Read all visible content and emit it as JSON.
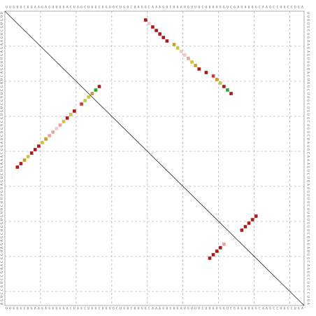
{
  "sequence": "UUGUGCUGAAGAGUUGGACUAGCUUGCUGUGCUGUCUAGGCAAAGUCUGAUGUUUCUUGUGGUCGAGAUGGCAAGCCUGCCUGA",
  "length": 84,
  "colors": {
    "grid": "#9a9a9a",
    "diagonal": "#222222",
    "sequence_text": "#555555",
    "prob_very_high": "#b01818",
    "prob_high": "#cc3a3a",
    "prob_medium_high": "#c9a020",
    "prob_medium": "#c8c640",
    "prob_green": "#2aa52a",
    "prob_low": "#e9a3a3",
    "prob_very_low": "#f2c8c8"
  },
  "upper_stem_1": [
    {
      "i": 3,
      "j": 44,
      "level": "prob_very_high"
    },
    {
      "i": 4,
      "j": 43,
      "level": "prob_very_high"
    },
    {
      "i": 5,
      "j": 42,
      "level": "prob_medium_high"
    },
    {
      "i": 6,
      "j": 41,
      "level": "prob_medium"
    },
    {
      "i": 7,
      "j": 40,
      "level": "prob_very_high"
    },
    {
      "i": 8,
      "j": 39,
      "level": "prob_very_high"
    },
    {
      "i": 9,
      "j": 38,
      "level": "prob_very_high"
    },
    {
      "i": 10,
      "j": 37,
      "level": "prob_medium"
    },
    {
      "i": 11,
      "j": 36,
      "level": "prob_medium_high"
    },
    {
      "i": 12,
      "j": 35,
      "level": "prob_low"
    },
    {
      "i": 13,
      "j": 34,
      "level": "prob_low"
    },
    {
      "i": 14,
      "j": 33,
      "level": "prob_very_low"
    },
    {
      "i": 15,
      "j": 32,
      "level": "prob_low"
    },
    {
      "i": 16,
      "j": 31,
      "level": "prob_medium"
    },
    {
      "i": 17,
      "j": 30,
      "level": "prob_very_high"
    },
    {
      "i": 18,
      "j": 29,
      "level": "prob_medium"
    },
    {
      "i": 19,
      "j": 28,
      "level": "prob_very_high"
    },
    {
      "i": 21,
      "j": 26,
      "level": "prob_high"
    },
    {
      "i": 22,
      "j": 25,
      "level": "prob_medium"
    },
    {
      "i": 23,
      "j": 24,
      "level": "prob_medium"
    },
    {
      "i": 24,
      "j": 23,
      "level": "prob_medium_high"
    },
    {
      "i": 25,
      "j": 22,
      "level": "prob_green"
    },
    {
      "i": 26,
      "j": 21,
      "level": "prob_very_high"
    }
  ],
  "upper_stem_2": [
    {
      "i": 39,
      "j": 2,
      "level": "prob_very_high"
    },
    {
      "i": 40,
      "j": 3,
      "level": "prob_very_low"
    },
    {
      "i": 41,
      "j": 4,
      "level": "prob_very_high"
    },
    {
      "i": 42,
      "j": 5,
      "level": "prob_very_high"
    },
    {
      "i": 43,
      "j": 6,
      "level": "prob_very_high"
    },
    {
      "i": 44,
      "j": 7,
      "level": "prob_very_high"
    },
    {
      "i": 45,
      "j": 8,
      "level": "prob_very_high"
    },
    {
      "i": 47,
      "j": 9,
      "level": "prob_medium_high"
    },
    {
      "i": 48,
      "j": 10,
      "level": "prob_medium"
    },
    {
      "i": 49,
      "j": 11,
      "level": "prob_very_low"
    },
    {
      "i": 50,
      "j": 12,
      "level": "prob_very_low"
    },
    {
      "i": 51,
      "j": 13,
      "level": "prob_low"
    },
    {
      "i": 52,
      "j": 14,
      "level": "prob_medium"
    },
    {
      "i": 53,
      "j": 15,
      "level": "prob_medium_high"
    },
    {
      "i": 54,
      "j": 16,
      "level": "prob_very_high"
    },
    {
      "i": 56,
      "j": 17,
      "level": "prob_very_high"
    },
    {
      "i": 58,
      "j": 18,
      "level": "prob_high"
    },
    {
      "i": 59,
      "j": 19,
      "level": "prob_medium_high"
    },
    {
      "i": 60,
      "j": 20,
      "level": "prob_medium"
    },
    {
      "i": 61,
      "j": 21,
      "level": "prob_very_high"
    },
    {
      "i": 62,
      "j": 22,
      "level": "prob_green"
    },
    {
      "i": 63,
      "j": 23,
      "level": "prob_very_high"
    }
  ],
  "lower_stem_1": [
    {
      "i": 57,
      "j": 70,
      "level": "prob_very_high"
    },
    {
      "i": 58,
      "j": 69,
      "level": "prob_very_high"
    },
    {
      "i": 59,
      "j": 68,
      "level": "prob_very_high"
    },
    {
      "i": 60,
      "j": 67,
      "level": "prob_very_high"
    },
    {
      "i": 61,
      "j": 66,
      "level": "prob_low"
    }
  ],
  "lower_stem_2": [
    {
      "i": 66,
      "j": 62,
      "level": "prob_very_high"
    },
    {
      "i": 67,
      "j": 61,
      "level": "prob_very_high"
    },
    {
      "i": 68,
      "j": 60,
      "level": "prob_very_high"
    },
    {
      "i": 69,
      "j": 59,
      "level": "prob_very_high"
    },
    {
      "i": 70,
      "j": 58,
      "level": "prob_very_high"
    }
  ]
}
